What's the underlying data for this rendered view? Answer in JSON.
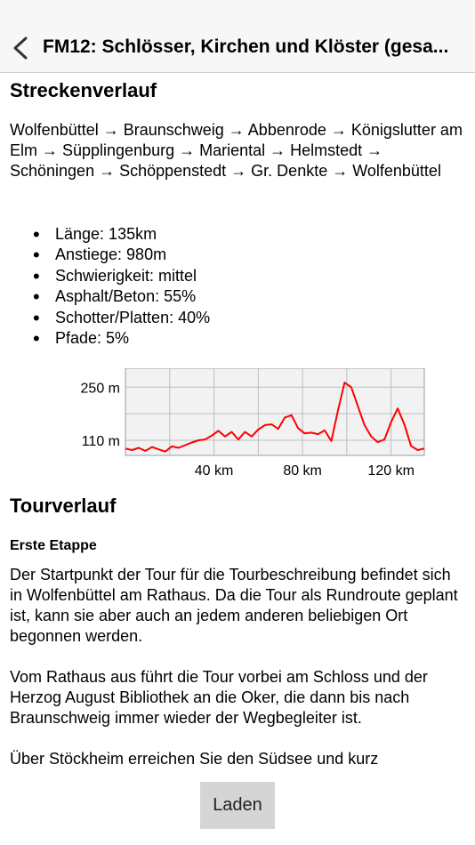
{
  "nav": {
    "title": "FM12: Schlösser, Kirchen und Klöster (gesa..."
  },
  "route": {
    "heading": "Streckenverlauf",
    "text": "Wolfenbüttel → Braunschweig → Abbenrode → Königslutter am Elm → Süpplingenburg → Mariental → Helmstedt → Schöningen → Schöppenstedt → Gr. Denkte → Wolfenbüttel"
  },
  "stats": [
    "Länge: 135km",
    "Anstiege: 980m",
    "Schwierigkeit: mittel",
    "Asphalt/Beton: 55%",
    "Schotter/Platten: 40%",
    "Pfade: 5%"
  ],
  "chart_data": {
    "type": "line",
    "title": "",
    "xlabel": "",
    "ylabel": "",
    "x_ticks": [
      "40 km",
      "80 km",
      "120 km"
    ],
    "y_ticks": [
      "250 m",
      "110 m"
    ],
    "xlim": [
      0,
      135
    ],
    "ylim": [
      70,
      300
    ],
    "grid": true,
    "line_color": "#ff0000",
    "series": [
      {
        "x": [
          0,
          3,
          6,
          9,
          12,
          15,
          18,
          21,
          24,
          27,
          30,
          33,
          36,
          39,
          42,
          45,
          48,
          51,
          54,
          57,
          60,
          63,
          66,
          69,
          72,
          75,
          78,
          81,
          84,
          87,
          90,
          93,
          96,
          99,
          102,
          105,
          108,
          111,
          114,
          117,
          120,
          123,
          126,
          129,
          132,
          135
        ],
        "y": [
          88,
          84,
          90,
          82,
          92,
          86,
          80,
          94,
          90,
          97,
          104,
          110,
          112,
          122,
          135,
          120,
          132,
          112,
          132,
          120,
          138,
          150,
          152,
          140,
          170,
          176,
          142,
          128,
          130,
          126,
          136,
          108,
          188,
          262,
          250,
          200,
          150,
          120,
          105,
          112,
          158,
          194,
          152,
          95,
          84,
          88
        ]
      }
    ]
  },
  "tour": {
    "heading": "Tourverlauf",
    "stage": "Erste Etappe",
    "p1": "Der Startpunkt der Tour für die Tourbeschreibung befindet sich in Wolfenbüttel am Rathaus. Da die Tour als Rundroute geplant ist, kann sie aber auch an jedem anderen beliebigen Ort begonnen werden.",
    "p2": "Vom Rathaus aus führt die Tour vorbei am Schloss und der Herzog August Bibliothek an die Oker, die dann bis nach Braunschweig immer wieder der Wegbegleiter ist.",
    "p3": "Über Stöckheim erreichen Sie den Südsee und kurz"
  },
  "button": {
    "laden": "Laden"
  }
}
